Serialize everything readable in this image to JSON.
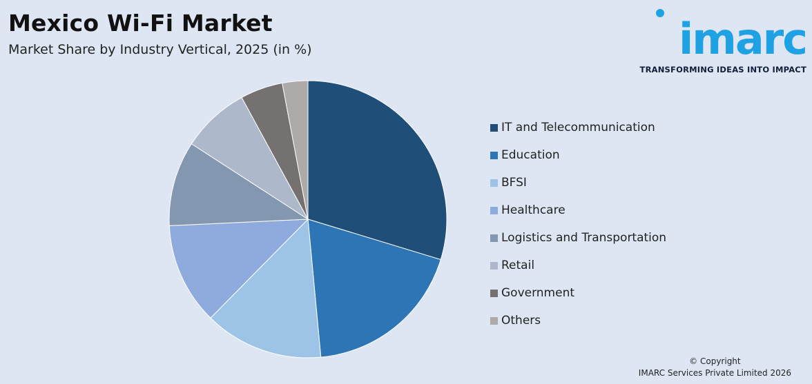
{
  "header": {
    "title": "Mexico Wi-Fi Market",
    "subtitle": "Market Share by Industry Vertical, 2025 (in %)"
  },
  "logo": {
    "wordmark": "imarc",
    "tagline": "TRANSFORMING IDEAS INTO IMPACT",
    "color": "#1fa2e4"
  },
  "footer": {
    "copyright_line1": "© Copyright",
    "copyright_line2": "IMARC Services Private Limited 2026"
  },
  "chart_data": {
    "type": "pie",
    "title": "Mexico Wi-Fi Market",
    "subtitle": "Market Share by Industry Vertical, 2025 (in %)",
    "legend_position": "right",
    "slices": [
      {
        "label": "IT and Telecommunication",
        "value": 30,
        "color": "#1f4e79"
      },
      {
        "label": "Education",
        "value": 19,
        "color": "#2e75b6"
      },
      {
        "label": "BFSI",
        "value": 14,
        "color": "#9dc3e6"
      },
      {
        "label": "Healthcare",
        "value": 12,
        "color": "#8faadc"
      },
      {
        "label": "Logistics and Transportation",
        "value": 10,
        "color": "#8497b0"
      },
      {
        "label": "Retail",
        "value": 8,
        "color": "#adb9ca"
      },
      {
        "label": "Government",
        "value": 5,
        "color": "#767171"
      },
      {
        "label": "Others",
        "value": 3,
        "color": "#aeaaaa"
      }
    ]
  }
}
